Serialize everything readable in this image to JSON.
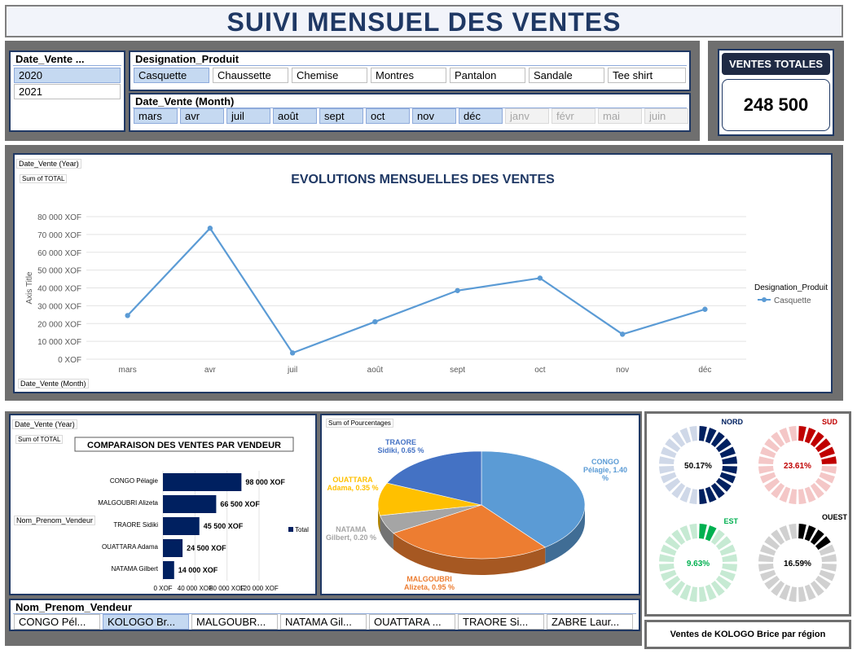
{
  "header": {
    "title": "SUIVI MENSUEL DES VENTES"
  },
  "year_slicer": {
    "title": "Date_Vente ...",
    "items": [
      "2020",
      "2021"
    ],
    "selected": "2020"
  },
  "product_slicer": {
    "title": "Designation_Produit",
    "items": [
      "Casquette",
      "Chaussette",
      "Chemise",
      "Montres",
      "Pantalon",
      "Sandale",
      "Tee shirt"
    ],
    "selected": "Casquette"
  },
  "month_slicer": {
    "title": "Date_Vente (Month)",
    "items": [
      "mars",
      "avr",
      "juil",
      "août",
      "sept",
      "oct",
      "nov",
      "déc",
      "janv",
      "févr",
      "mai",
      "juin"
    ],
    "dimmed": [
      "janv",
      "févr",
      "mai",
      "juin"
    ]
  },
  "kpi": {
    "label": "VENTES TOTALES",
    "value": "248 500"
  },
  "line_chart": {
    "filter_label": "Date_Vente (Year)",
    "sum_label": "Sum of TOTAL",
    "axis_field_label": "Date_Vente (Month)",
    "legend_title": "Designation_Produit",
    "colors": {
      "series": "#5b9bd5",
      "title": "#1f3864"
    }
  },
  "bar_chart": {
    "filter_label": "Date_Vente (Year)",
    "sum_label": "Sum of TOTAL",
    "row_field_label": "Nom_Prenom_Vendeur",
    "color": "#002060"
  },
  "pie_chart": {
    "sum_label": "Sum of Pourcentages"
  },
  "region_panel": {
    "caption": "Ventes de KOLOGO Brice par région"
  },
  "vendor_slicer": {
    "title": "Nom_Prenom_Vendeur",
    "items": [
      "CONGO Pél...",
      "KOLOGO Br...",
      "MALGOUBR...",
      "NATAMA Gil...",
      "OUATTARA ...",
      "TRAORE Si...",
      "ZABRE Laur..."
    ],
    "selected": "KOLOGO Br..."
  },
  "chart_data": [
    {
      "type": "line",
      "title": "EVOLUTIONS MENSUELLES DES VENTES",
      "xlabel": "",
      "ylabel": "Axis Title",
      "categories": [
        "mars",
        "avr",
        "juil",
        "août",
        "sept",
        "oct",
        "nov",
        "déc"
      ],
      "series": [
        {
          "name": "Casquette",
          "values": [
            24500,
            73500,
            3500,
            21000,
            38500,
            45500,
            14000,
            28000
          ]
        }
      ],
      "ylim": [
        0,
        80000
      ],
      "yticks": [
        "0 XOF",
        "10 000 XOF",
        "20 000 XOF",
        "30 000 XOF",
        "40 000 XOF",
        "50 000 XOF",
        "60 000 XOF",
        "70 000 XOF",
        "80 000 XOF"
      ],
      "grid": true,
      "legend": "right"
    },
    {
      "type": "bar",
      "orientation": "horizontal",
      "title": "COMPARAISON DES VENTES PAR VENDEUR",
      "categories": [
        "CONGO Pélagie",
        "MALGOUBRI Alizeta",
        "TRAORE Sidiki",
        "OUATTARA Adama",
        "NATAMA Gilbert"
      ],
      "values": [
        98000,
        66500,
        45500,
        24500,
        14000
      ],
      "data_labels": [
        "98 000 XOF",
        "66 500 XOF",
        "45 500 XOF",
        "24 500 XOF",
        "14 000 XOF"
      ],
      "series": [
        {
          "name": "Total",
          "values": [
            98000,
            66500,
            45500,
            24500,
            14000
          ]
        }
      ],
      "xticks": [
        "0 XOF",
        "40 000 XOF",
        "80 000 XOF",
        "120 000 XOF"
      ],
      "xlim": [
        0,
        120000
      ],
      "legend": "right"
    },
    {
      "type": "pie",
      "slices": [
        {
          "name": "CONGO",
          "name2": "Pélagie, 1.40",
          "name3": "%",
          "value": 1.4,
          "color": "#5b9bd5"
        },
        {
          "name": "MALGOUBRI",
          "name2": "Alizeta, 0.95 %",
          "value": 0.95,
          "color": "#ed7d31"
        },
        {
          "name": "NATAMA",
          "name2": "Gilbert, 0.20 %",
          "value": 0.2,
          "color": "#a5a5a5"
        },
        {
          "name": "OUATTARA",
          "name2": "Adama, 0.35 %",
          "value": 0.35,
          "color": "#ffc000"
        },
        {
          "name": "TRAORE",
          "name2": "Sidiki, 0.65 %",
          "value": 0.65,
          "color": "#4472c4"
        }
      ]
    },
    {
      "type": "pie",
      "subtype": "donut",
      "charts": [
        {
          "region": "NORD",
          "value": 50.17,
          "label": "50.17%",
          "dark": "#002060",
          "light": "#cfd8e8",
          "label_color": "#002060",
          "text_color": "#000000"
        },
        {
          "region": "SUD",
          "value": 23.61,
          "label": "23.61%",
          "dark": "#c00000",
          "light": "#f4c7c7",
          "label_color": "#c00000",
          "text_color": "#c00000"
        },
        {
          "region": "EST",
          "value": 9.63,
          "label": "9.63%",
          "dark": "#00b050",
          "light": "#c6ead3",
          "label_color": "#00b050",
          "text_color": "#00b050"
        },
        {
          "region": "OUEST",
          "value": 16.59,
          "label": "16.59%",
          "dark": "#000000",
          "light": "#d0d0d0",
          "label_color": "#000000",
          "text_color": "#000000"
        }
      ]
    }
  ]
}
